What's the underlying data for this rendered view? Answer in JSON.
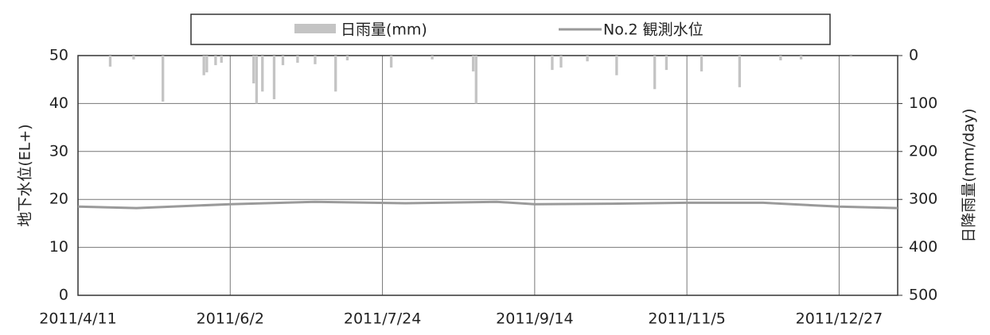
{
  "chart_data": {
    "type": "bar_line",
    "ylabel": "地下水位(EL+)",
    "y2label": "日降雨量(mm/day)",
    "xlim": [
      "2011-04-11",
      "2012-01-16"
    ],
    "xticks": [
      {
        "value": "2011-04-11",
        "label": "2011/4/11"
      },
      {
        "value": "2011-06-02",
        "label": "2011/6/2"
      },
      {
        "value": "2011-07-24",
        "label": "2011/7/24"
      },
      {
        "value": "2011-09-14",
        "label": "2011/9/14"
      },
      {
        "value": "2011-11-05",
        "label": "2011/11/5"
      },
      {
        "value": "2011-12-27",
        "label": "2011/12/27"
      }
    ],
    "ylim": [
      0,
      50
    ],
    "yticks": [
      0,
      10,
      20,
      30,
      40,
      50
    ],
    "y2lim": [
      0,
      500
    ],
    "y2ticks": [
      0,
      100,
      200,
      300,
      400,
      500
    ],
    "y2_inverted": true,
    "grid": true,
    "legend": "top",
    "series": [
      {
        "name": "日雨量(mm)",
        "type": "bar",
        "axis": "y2",
        "color": "#c4c4c4",
        "x": [
          "2011-04-22",
          "2011-04-30",
          "2011-05-10",
          "2011-05-24",
          "2011-05-25",
          "2011-05-28",
          "2011-05-30",
          "2011-06-10",
          "2011-06-11",
          "2011-06-13",
          "2011-06-17",
          "2011-06-20",
          "2011-06-25",
          "2011-07-01",
          "2011-07-08",
          "2011-07-12",
          "2011-07-27",
          "2011-08-10",
          "2011-08-24",
          "2011-08-25",
          "2011-09-20",
          "2011-09-23",
          "2011-10-02",
          "2011-10-12",
          "2011-10-25",
          "2011-10-29",
          "2011-11-10",
          "2011-11-23",
          "2011-12-07",
          "2011-12-14",
          "2011-12-31"
        ],
        "values": [
          23,
          8,
          96,
          41,
          35,
          20,
          15,
          58,
          100,
          75,
          91,
          20,
          15,
          18,
          75,
          10,
          25,
          8,
          33,
          100,
          30,
          25,
          12,
          41,
          70,
          30,
          33,
          66,
          10,
          8,
          3
        ]
      },
      {
        "name": "No.2 観測水位",
        "type": "line",
        "axis": "y",
        "color": "#9a9a9a",
        "x": [
          "2011-04-11",
          "2011-05-01",
          "2011-06-02",
          "2011-07-01",
          "2011-08-01",
          "2011-09-01",
          "2011-09-14",
          "2011-10-10",
          "2011-11-05",
          "2011-12-01",
          "2011-12-27",
          "2012-01-16"
        ],
        "values": [
          18.5,
          18.2,
          19.0,
          19.5,
          19.2,
          19.5,
          19.0,
          19.1,
          19.3,
          19.3,
          18.5,
          18.2
        ]
      }
    ]
  }
}
